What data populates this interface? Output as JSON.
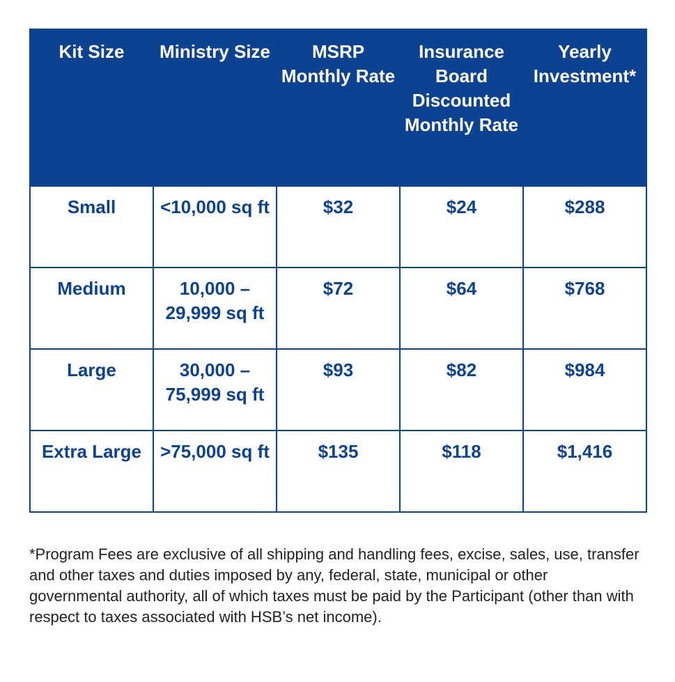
{
  "table": {
    "headers": [
      "Kit Size",
      "Ministry Size",
      "MSRP Monthly Rate",
      "Insurance Board Discounted Monthly Rate",
      "Yearly Investment*"
    ],
    "rows": [
      {
        "kit_size": "Small",
        "ministry_size": "<10,000 sq ft",
        "msrp_monthly_rate": "$32",
        "discounted_monthly_rate": "$24",
        "yearly_investment": "$288"
      },
      {
        "kit_size": "Medium",
        "ministry_size": "10,000 – 29,999 sq ft",
        "msrp_monthly_rate": "$72",
        "discounted_monthly_rate": "$64",
        "yearly_investment": "$768"
      },
      {
        "kit_size": "Large",
        "ministry_size": "30,000 – 75,999 sq ft",
        "msrp_monthly_rate": "$93",
        "discounted_monthly_rate": "$82",
        "yearly_investment": "$984"
      },
      {
        "kit_size": "Extra Large",
        "ministry_size": ">75,000 sq ft",
        "msrp_monthly_rate": "$135",
        "discounted_monthly_rate": "$118",
        "yearly_investment": "$1,416"
      }
    ]
  },
  "footnote": "*Program Fees are exclusive of all shipping and handling fees, excise, sales, use, transfer and other taxes and duties imposed by any, federal, state, municipal or other governmental authority, all of which taxes must be paid by the Participant (other than with respect to taxes associated with HSB’s net income).",
  "colors": {
    "header_background": "#0c428f",
    "header_text": "#ffffff",
    "cell_text": "#0c428f",
    "border": "#0c428f",
    "footnote_text": "#222222"
  }
}
